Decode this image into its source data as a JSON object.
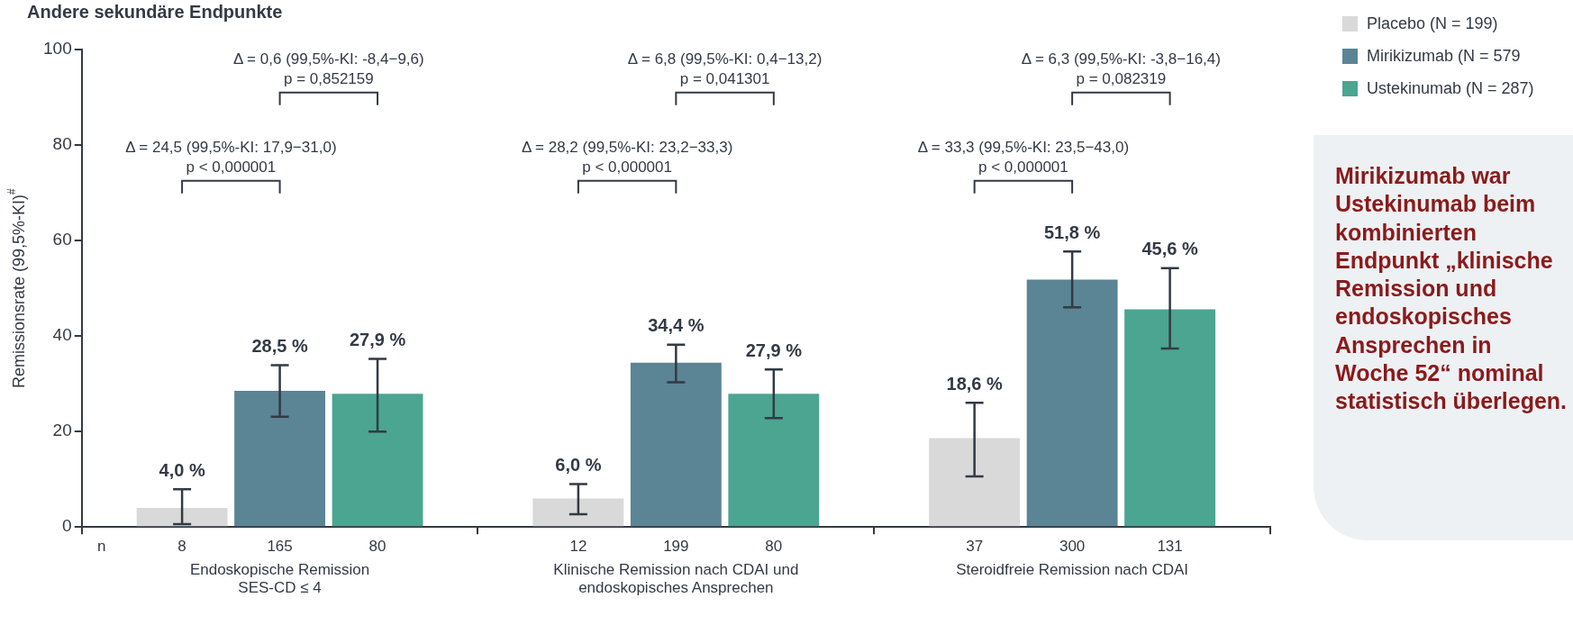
{
  "chart_data": {
    "type": "bar",
    "title": "Andere sekundäre Endpunkte",
    "ylabel": "Remissionsrate (99,5%-KI)$^{#}$",
    "categories": [
      "Endoskopische Remission\nSES-CD ≤ 4",
      "Klinische Remission nach CDAI und\nendoskopisches Ansprechen",
      "Steroidfreie Remission nach CDAI"
    ],
    "series": [
      {
        "name": "Placebo (N = 199)",
        "color": "#d9d9d9",
        "values": [
          4.0,
          6.0,
          18.6
        ],
        "value_labels": [
          "4,0 %",
          "6,0 %",
          "18,6 %"
        ],
        "errors": [
          [
            0.6,
            7.9
          ],
          [
            2.7,
            9.0
          ],
          [
            10.6,
            26.0
          ]
        ]
      },
      {
        "name": "Mirikizumab (N = 579",
        "color": "#5b8494",
        "values": [
          28.5,
          34.4,
          51.8
        ],
        "value_labels": [
          "28,5 %",
          "34,4 %",
          "51,8 %"
        ],
        "errors": [
          [
            23.1,
            33.9
          ],
          [
            30.3,
            38.2
          ],
          [
            46.0,
            57.7
          ]
        ]
      },
      {
        "name": "Ustekinumab (N = 287)",
        "color": "#4ba590",
        "values": [
          27.9,
          27.9,
          45.6
        ],
        "value_labels": [
          "27,9 %",
          "27,9 %",
          "45,6 %"
        ],
        "errors": [
          [
            20.0,
            35.2
          ],
          [
            22.8,
            33.0
          ],
          [
            37.4,
            54.2
          ]
        ]
      }
    ],
    "ylim": [
      0,
      100
    ],
    "yticks": [
      0,
      20,
      40,
      60,
      80,
      100
    ],
    "grid": false,
    "legend": "top right",
    "annotations": [
      "Δ = 24,5 (99,5%-KI: 17,9−31,0)\np < 0,000001",
      "Δ = 0,6 (99,5%-KI: -8,4−9,6)\np = 0,852159",
      "Δ = 28,2 (99,5%-KI: 23,2−33,3)\np < 0,000001",
      "Δ = 6,8 (99,5%-KI: 0,4−13,2)\np = 0,041301",
      "Δ = 33,3 (99,5%-KI: 23,5−43,0)\np < 0,000001",
      "Δ = 6,3 (99,5%-KI: -3,8−16,4)\np = 0,082319",
      "n",
      "8",
      "165",
      "80",
      "12",
      "199",
      "80",
      "37",
      "300",
      "131",
      "Mirikizumab war Ustekinumab beim kombinierten Endpunkt „klinische Remission und endoskopisches Ansprechen in Woche 52“ nominal statistisch überlegen."
    ]
  }
}
